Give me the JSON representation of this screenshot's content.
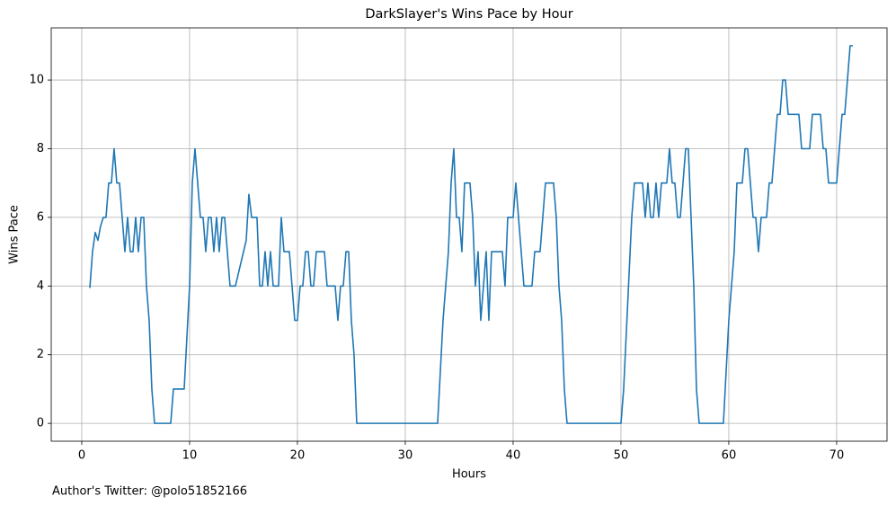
{
  "chart_data": {
    "type": "line",
    "title": "DarkSlayer's Wins Pace by Hour",
    "x_label": "Hours",
    "y_label": "Wins Pace",
    "annotation": "Author's Twitter: @polo51852166",
    "xlim": [
      -2.83,
      74.67
    ],
    "ylim": [
      -0.52,
      11.52
    ],
    "xticks": [
      0,
      10,
      20,
      30,
      40,
      50,
      60,
      70
    ],
    "yticks": [
      0,
      2,
      4,
      6,
      8,
      10
    ],
    "grid": true,
    "series": [
      {
        "color": "#1f77b4",
        "x": [
          0.75,
          1.0,
          1.25,
          1.5,
          1.75,
          2.0,
          2.25,
          2.5,
          2.75,
          3.0,
          3.25,
          3.5,
          3.75,
          4.0,
          4.25,
          4.5,
          4.75,
          5.0,
          5.25,
          5.5,
          5.75,
          6.0,
          6.25,
          6.5,
          6.75,
          8.25,
          8.5,
          9.5,
          10.0,
          10.25,
          10.5,
          10.75,
          11.0,
          11.25,
          11.5,
          11.75,
          12.0,
          12.25,
          12.5,
          12.75,
          13.0,
          13.25,
          13.5,
          13.75,
          14.25,
          15.0,
          15.25,
          15.5,
          15.75,
          16.25,
          16.5,
          16.75,
          17.0,
          17.25,
          17.5,
          17.75,
          18.25,
          18.5,
          18.75,
          19.25,
          19.75,
          20.0,
          20.25,
          20.5,
          20.75,
          21.0,
          21.25,
          21.5,
          21.75,
          22.5,
          22.75,
          23.5,
          23.75,
          24.0,
          24.25,
          24.5,
          24.75,
          25.0,
          25.25,
          25.5,
          33.0,
          33.5,
          34.0,
          34.25,
          34.5,
          34.75,
          35.0,
          35.25,
          35.5,
          36.0,
          36.25,
          36.5,
          36.75,
          37.0,
          37.25,
          37.5,
          37.75,
          38.0,
          39.0,
          39.25,
          39.5,
          40.0,
          40.25,
          40.5,
          41.0,
          41.5,
          41.75,
          42.0,
          42.5,
          43.0,
          43.75,
          44.0,
          44.25,
          44.5,
          44.75,
          45.0,
          50.0,
          50.25,
          51.0,
          51.25,
          52.0,
          52.25,
          52.5,
          52.75,
          53.0,
          53.25,
          53.5,
          53.75,
          54.25,
          54.5,
          54.75,
          55.0,
          55.25,
          55.5,
          55.75,
          56.0,
          56.25,
          56.5,
          56.75,
          57.0,
          57.25,
          59.5,
          60.0,
          60.25,
          60.5,
          60.75,
          61.25,
          61.5,
          61.75,
          62.0,
          62.25,
          62.5,
          62.75,
          63.0,
          63.5,
          63.75,
          64.0,
          64.5,
          64.75,
          65.0,
          65.25,
          65.5,
          66.5,
          66.75,
          67.5,
          67.75,
          68.5,
          68.75,
          69.0,
          69.25,
          70.0,
          70.25,
          70.5,
          70.75,
          71.25,
          71.5
        ],
        "values": [
          3.94,
          5.0,
          5.56,
          5.33,
          5.75,
          6,
          6,
          7,
          7,
          8,
          7,
          7,
          6,
          5,
          6,
          5,
          5,
          6,
          5,
          6,
          6,
          4,
          3,
          1,
          0,
          0,
          1,
          1,
          4,
          7,
          8,
          7,
          6,
          6,
          5,
          6,
          6,
          5,
          6,
          5,
          6,
          6,
          5,
          4,
          4,
          5,
          5.33,
          6.67,
          6,
          6,
          4,
          4,
          5,
          4,
          5,
          4,
          4,
          6,
          5,
          5,
          3,
          3,
          4,
          4,
          5,
          5,
          4,
          4,
          5,
          5,
          4,
          4,
          3,
          4,
          4,
          5,
          5,
          3,
          2,
          0,
          0,
          3,
          5,
          7,
          8,
          6,
          6,
          5,
          7,
          7,
          6,
          4,
          5,
          3,
          4,
          5,
          3,
          5,
          5,
          4,
          6,
          6,
          7,
          6,
          4,
          4,
          4,
          5,
          5,
          7,
          7,
          6,
          4,
          3,
          1,
          0,
          0,
          1,
          6,
          7,
          7,
          6,
          7,
          6,
          6,
          7,
          6,
          7,
          7,
          8,
          7,
          7,
          6,
          6,
          7,
          8,
          8,
          6,
          4,
          1,
          0,
          0,
          3,
          4,
          5,
          7,
          7,
          8,
          8,
          7,
          6,
          6,
          5,
          6,
          6,
          7,
          7,
          9,
          9,
          10,
          10,
          9,
          9,
          8,
          8,
          9,
          9,
          8,
          8,
          7,
          7,
          8,
          9,
          9,
          11,
          11
        ]
      }
    ]
  }
}
